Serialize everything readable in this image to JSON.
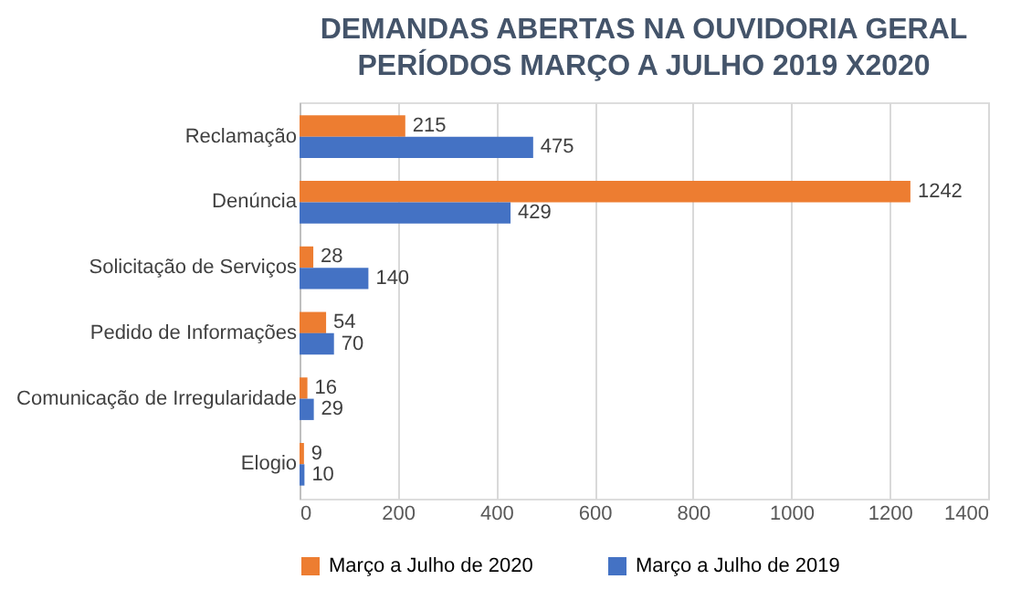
{
  "chart_data": {
    "type": "bar",
    "orientation": "horizontal",
    "title": "DEMANDAS ABERTAS NA OUVIDORIA GERAL",
    "subtitle": "PERÍODOS MARÇO A JULHO 2019 X2020",
    "categories": [
      "Reclamação",
      "Denúncia",
      "Solicitação de Serviços",
      "Pedido de Informações",
      "Comunicação de Irregularidade",
      "Elogio"
    ],
    "series": [
      {
        "name": "Março a Julho de 2020",
        "color": "#ed7d31",
        "values": [
          215,
          1242,
          28,
          54,
          16,
          9
        ]
      },
      {
        "name": "Março a Julho de 2019",
        "color": "#4472c4",
        "values": [
          475,
          429,
          140,
          70,
          29,
          10
        ]
      }
    ],
    "xlim": [
      0,
      1400
    ],
    "xticks": [
      0,
      200,
      400,
      600,
      800,
      1000,
      1200,
      1400
    ],
    "grid": "x",
    "legend": "bottom",
    "data_labels": true
  }
}
